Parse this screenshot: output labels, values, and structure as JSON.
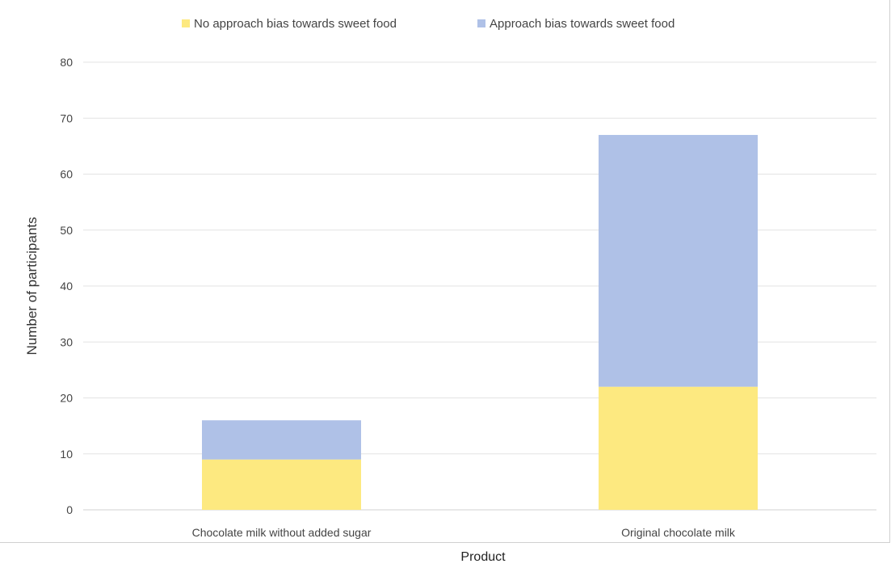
{
  "chart_data": {
    "type": "bar",
    "stacked": true,
    "title": "",
    "xlabel": "Product",
    "ylabel": "Number of participants",
    "ylim": [
      0,
      80
    ],
    "yticks": [
      0,
      10,
      20,
      30,
      40,
      50,
      60,
      70,
      80
    ],
    "grid": true,
    "legend_position": "top",
    "categories": [
      "Chocolate milk without added sugar",
      "Original chocolate milk"
    ],
    "series": [
      {
        "name": "No approach bias towards sweet food",
        "color": "#fde980",
        "values": [
          9,
          22
        ]
      },
      {
        "name": "Approach bias towards sweet food",
        "color": "#afc1e7",
        "values": [
          7,
          45
        ]
      }
    ]
  }
}
